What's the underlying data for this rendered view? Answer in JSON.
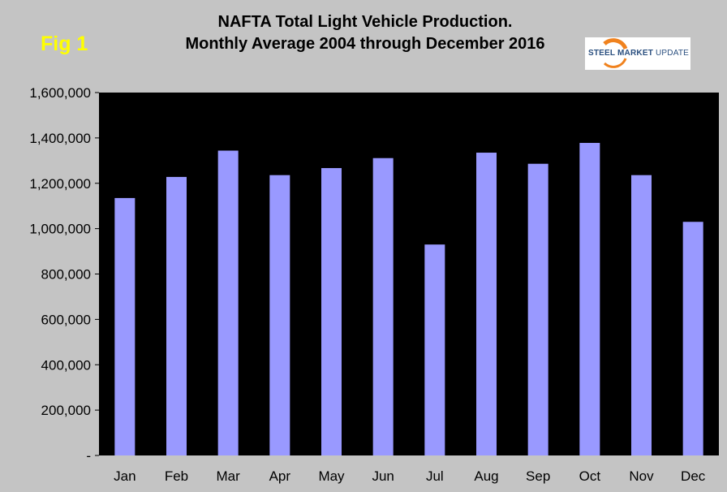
{
  "header": {
    "fig_label": "Fig 1",
    "title_line1": "NAFTA Total Light Vehicle Production.",
    "title_line2": "Monthly Average 2004 through December 2016"
  },
  "logo": {
    "text_bold": "STEEL MARKET",
    "text_light": " UPDATE",
    "colors": {
      "orange": "#f0821e",
      "blue": "#2a4f7f"
    }
  },
  "colors": {
    "background": "#c4c4c4",
    "plot_area": "#000000",
    "bar": "#9999ff",
    "fig_label": "#ffff00"
  },
  "chart_data": {
    "type": "bar",
    "title": "NAFTA Total Light Vehicle Production. Monthly Average 2004 through December 2016",
    "categories": [
      "Jan",
      "Feb",
      "Mar",
      "Apr",
      "May",
      "Jun",
      "Jul",
      "Aug",
      "Sep",
      "Oct",
      "Nov",
      "Dec"
    ],
    "values": [
      1135000,
      1228000,
      1344000,
      1236000,
      1267000,
      1311000,
      930000,
      1335000,
      1286000,
      1378000,
      1236000,
      1030000
    ],
    "ylim": [
      0,
      1600000
    ],
    "yticks": [
      0,
      200000,
      400000,
      600000,
      800000,
      1000000,
      1200000,
      1400000,
      1600000
    ],
    "ytick_labels": [
      "-",
      "200,000",
      "400,000",
      "600,000",
      "800,000",
      "1,000,000",
      "1,200,000",
      "1,400,000",
      "1,600,000"
    ],
    "xlabel": "",
    "ylabel": "",
    "grid": false,
    "legend": "none"
  }
}
